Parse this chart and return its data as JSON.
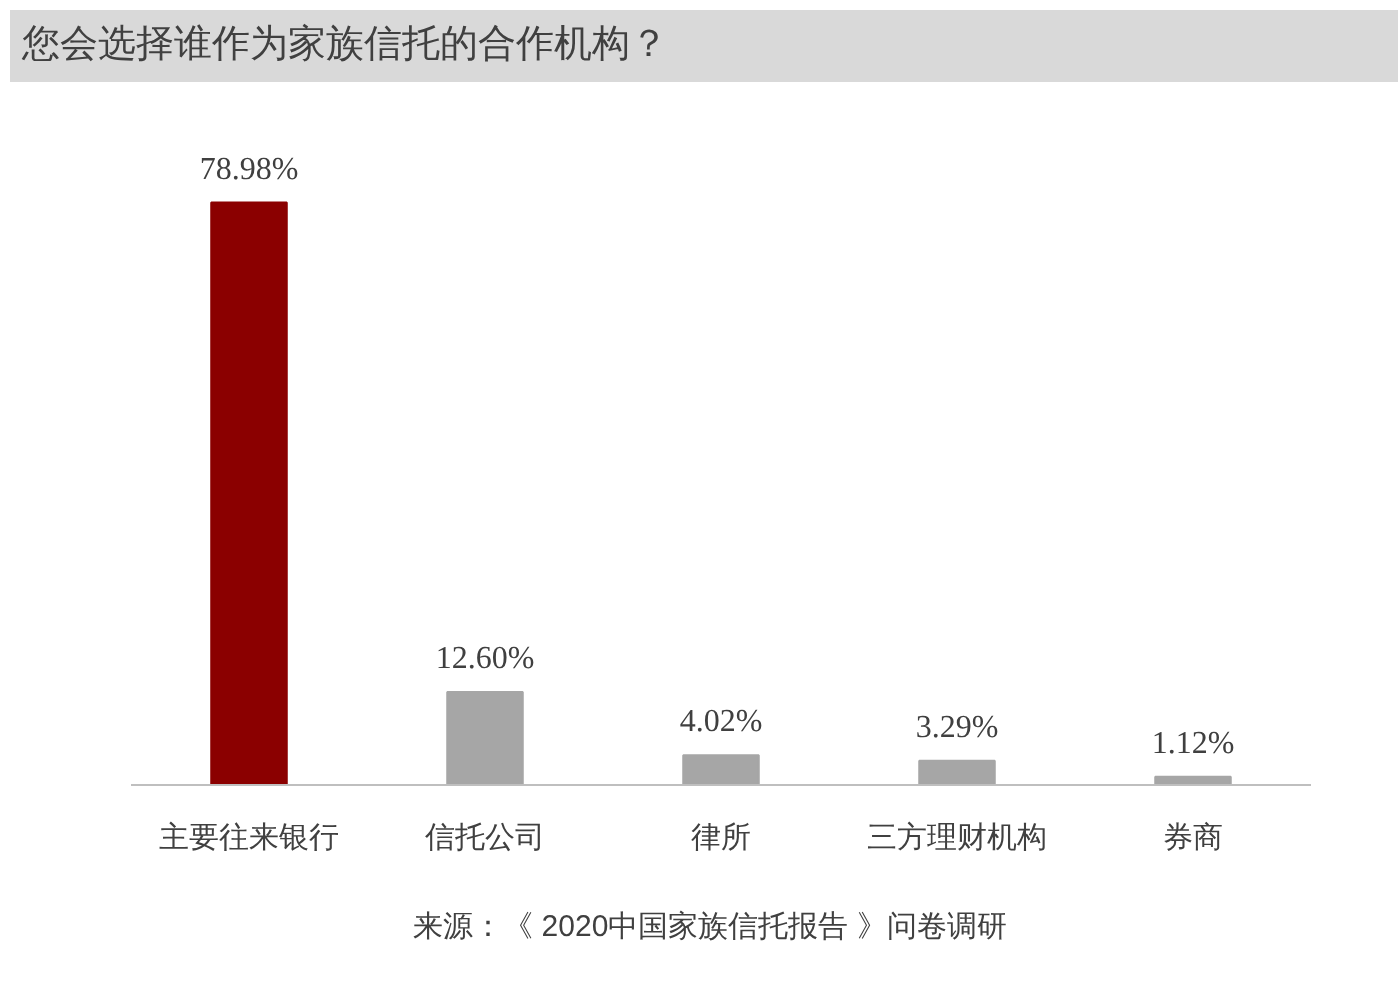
{
  "chart_data": {
    "type": "bar",
    "title": "您会选择谁作为家族信托的合作机构？",
    "categories": [
      "主要往来银行",
      "信托公司",
      "律所",
      "三方理财机构",
      "券商"
    ],
    "values": [
      78.98,
      12.6,
      4.02,
      3.29,
      1.12
    ],
    "colors": [
      "#8b0000",
      "#a6a6a6",
      "#a6a6a6",
      "#a6a6a6",
      "#a6a6a6"
    ],
    "value_labels": [
      "78.98%",
      "12.60%",
      "4.02%",
      "3.29%",
      "1.12%"
    ],
    "annotations": [
      "来源：《 2020中国家族信托报告 》问卷调研"
    ]
  }
}
